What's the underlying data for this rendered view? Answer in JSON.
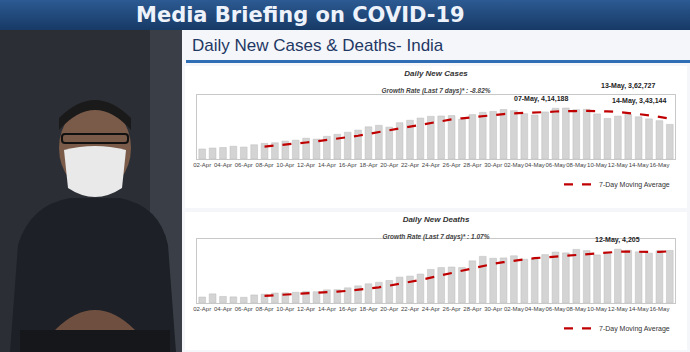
{
  "header": {
    "title": "Media Briefing on COVID-19"
  },
  "slide": {
    "title": "Daily New Cases & Deaths- India"
  },
  "chart_data": [
    {
      "type": "bar",
      "title": "Daily New Cases",
      "subtitle": "Growth Rate (Last 7 days)* : -8.82%",
      "categories": [
        "02-Apr",
        null,
        "04-Apr",
        null,
        "06-Apr",
        null,
        "08-Apr",
        null,
        "10-Apr",
        null,
        "12-Apr",
        null,
        "14-Apr",
        null,
        "16-Apr",
        null,
        "18-Apr",
        null,
        "20-Apr",
        null,
        "22-Apr",
        null,
        "24-Apr",
        null,
        "26-Apr",
        null,
        "28-Apr",
        null,
        "30-Apr",
        null,
        "02-May",
        null,
        "04-May",
        null,
        "06-May",
        null,
        "08-May",
        null,
        "10-May",
        null,
        "12-May",
        null,
        "14-May",
        null,
        "16-May",
        null
      ],
      "series": [
        {
          "type": "bar",
          "color": "#d4d4d4",
          "values": [
            81466,
            89129,
            93249,
            103558,
            96982,
            115736,
            126789,
            131968,
            145384,
            152879,
            168912,
            161736,
            184372,
            200739,
            217353,
            234692,
            261500,
            273810,
            259170,
            295041,
            314835,
            332730,
            346786,
            349691,
            352991,
            323144,
            360960,
            379257,
            386452,
            401993,
            392488,
            368147,
            357229,
            382315,
            412262,
            414188,
            401078,
            403738,
            366161,
            329942,
            348421,
            362727,
            343144,
            326098,
            311170,
            281386
          ]
        },
        {
          "name": "7-Day Moving Average",
          "type": "line",
          "color": "#c00000",
          "line_style": "dash",
          "values": [
            null,
            null,
            null,
            null,
            null,
            null,
            100987,
            108202,
            116238,
            124757,
            134093,
            143343,
            153149,
            163713,
            175911,
            188669,
            204186,
            219172,
            233091,
            248901,
            265200,
            281683,
            297696,
            310295,
            321606,
            330745,
            340162,
            349366,
            357040,
            364927,
            371041,
            373206,
            378075,
            381126,
            385841,
            389803,
            389672,
            391280,
            390996,
            387098,
            382256,
            375179,
            365030,
            354319,
            341095,
            328984
          ]
        }
      ],
      "annotations": [
        {
          "text": "07-May, 4,14,188",
          "value": 414188
        },
        {
          "text": "13-May, 3,62,727",
          "value": 362727
        },
        {
          "text": "14-May, 3,43,144",
          "value": 343144
        }
      ],
      "ylim": [
        0,
        520000
      ],
      "grid": false,
      "tick_labels": "x",
      "legend": "lower right"
    },
    {
      "type": "bar",
      "title": "Daily New Deaths",
      "subtitle": "Growth Rate (Last 7 days)* : 1.07%",
      "categories": [
        "02-Apr",
        null,
        "04-Apr",
        null,
        "06-Apr",
        null,
        "08-Apr",
        null,
        "10-Apr",
        null,
        "12-Apr",
        null,
        "14-Apr",
        null,
        "16-Apr",
        null,
        "18-Apr",
        null,
        "20-Apr",
        null,
        "22-Apr",
        null,
        "24-Apr",
        null,
        "26-Apr",
        null,
        "28-Apr",
        null,
        "30-Apr",
        null,
        "02-May",
        null,
        "04-May",
        null,
        "06-May",
        null,
        "08-May",
        null,
        "10-May",
        null,
        "12-May",
        null,
        "14-May",
        null,
        "16-May",
        null
      ],
      "series": [
        {
          "type": "bar",
          "color": "#d4d4d4",
          "values": [
            469,
            714,
            513,
            478,
            446,
            630,
            685,
            780,
            794,
            839,
            904,
            879,
            1027,
            1038,
            1185,
            1341,
            1501,
            1619,
            1761,
            2023,
            2104,
            2263,
            2624,
            2767,
            2812,
            2771,
            3293,
            3645,
            3498,
            3523,
            3689,
            3417,
            3449,
            3780,
            3980,
            3915,
            4187,
            4092,
            3754,
            3876,
            4205,
            4120,
            4000,
            3890,
            4077,
            4106
          ]
        },
        {
          "name": "7-Day Moving Average",
          "type": "line",
          "color": "#c00000",
          "line_style": "dash",
          "values": [
            null,
            null,
            null,
            null,
            null,
            null,
            562,
            607,
            618,
            665,
            725,
            787,
            844,
            894,
            952,
            1030,
            1125,
            1227,
            1353,
            1495,
            1648,
            1802,
            1985,
            2166,
            2336,
            2481,
            2662,
            2882,
            3059,
            3187,
            3319,
            3405,
            3502,
            3572,
            3619,
            3679,
            3774,
            3831,
            3880,
            3941,
            4001,
            4021,
            4033,
            3991,
            3989,
            4039
          ]
        }
      ],
      "annotations": [
        {
          "text": "12-May, 4,205",
          "value": 4205
        }
      ],
      "ylim": [
        0,
        5000
      ],
      "grid": false,
      "tick_labels": "x",
      "legend": "lower right"
    }
  ]
}
